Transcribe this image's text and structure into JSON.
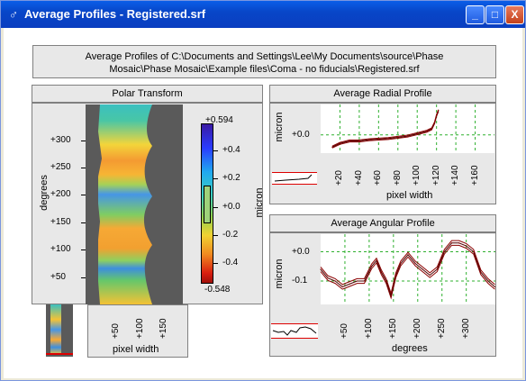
{
  "window": {
    "title": "Average Profiles - Registered.srf",
    "buttons": [
      "_",
      "□",
      "X"
    ]
  },
  "header": {
    "line1": "Average Profiles of C:\\Documents and Settings\\Lee\\My Documents\\source\\Phase",
    "line2": "Mosaic\\Phase Mosaic\\Example files\\Coma - no fiducials\\Registered.srf"
  },
  "polar": {
    "title": "Polar Transform",
    "ylabel": "degrees",
    "xlabel": "pixel width",
    "yticks": [
      "+300",
      "+250",
      "+200",
      "+150",
      "+100",
      "+50"
    ],
    "xticks": [
      "+50",
      "+100",
      "+150"
    ],
    "colorbar": {
      "max": "+0.594",
      "min": "-0.548",
      "ticks": [
        "+0.4",
        "+0.2",
        "+0.0",
        "-0.2",
        "-0.4"
      ],
      "unit": "micron"
    }
  },
  "radial": {
    "title": "Average Radial Profile",
    "ylabel": "micron",
    "xlabel": "pixel width",
    "yticks": [
      "+0.0"
    ],
    "xticks": [
      "+20",
      "+40",
      "+60",
      "+80",
      "+100",
      "+120",
      "+140",
      "+160"
    ]
  },
  "angular": {
    "title": "Average Angular Profile",
    "ylabel": "micron",
    "xlabel": "degrees",
    "yticks": [
      "+0.0",
      "-0.1"
    ],
    "xticks": [
      "+50",
      "+100",
      "+150",
      "+200",
      "+250",
      "+300"
    ]
  },
  "colors": {
    "titlebar": "#0a4fd8",
    "line": "#8b0000",
    "grid": "#2fb02f",
    "panel": "#e8e8e8"
  },
  "chart_data": [
    {
      "type": "line",
      "title": "Average Radial Profile",
      "xlabel": "pixel width",
      "ylabel": "micron",
      "x": [
        12,
        20,
        30,
        40,
        50,
        60,
        70,
        80,
        90,
        100,
        110,
        115,
        118,
        120,
        122
      ],
      "series": [
        {
          "values": [
            -0.1,
            -0.07,
            -0.05,
            -0.05,
            -0.04,
            -0.035,
            -0.03,
            -0.02,
            -0.01,
            0.01,
            0.03,
            0.05,
            0.1,
            0.16,
            0.2
          ]
        }
      ],
      "xlim": [
        0,
        180
      ],
      "ylim": [
        -0.15,
        0.25
      ],
      "grid": true
    },
    {
      "type": "line",
      "title": "Average Angular Profile",
      "xlabel": "degrees",
      "ylabel": "micron",
      "x": [
        0,
        15,
        30,
        45,
        60,
        75,
        90,
        105,
        115,
        125,
        135,
        145,
        155,
        165,
        180,
        195,
        210,
        225,
        240,
        255,
        270,
        285,
        300,
        315,
        330,
        345,
        359
      ],
      "series": [
        {
          "values": [
            -0.06,
            -0.09,
            -0.1,
            -0.12,
            -0.11,
            -0.1,
            -0.1,
            -0.05,
            -0.03,
            -0.07,
            -0.1,
            -0.15,
            -0.08,
            -0.04,
            -0.01,
            -0.04,
            -0.06,
            -0.08,
            -0.06,
            0.0,
            0.03,
            0.03,
            0.02,
            0.0,
            -0.07,
            -0.1,
            -0.12
          ]
        }
      ],
      "xlim": [
        0,
        360
      ],
      "ylim": [
        -0.18,
        0.06
      ],
      "grid": true
    }
  ]
}
